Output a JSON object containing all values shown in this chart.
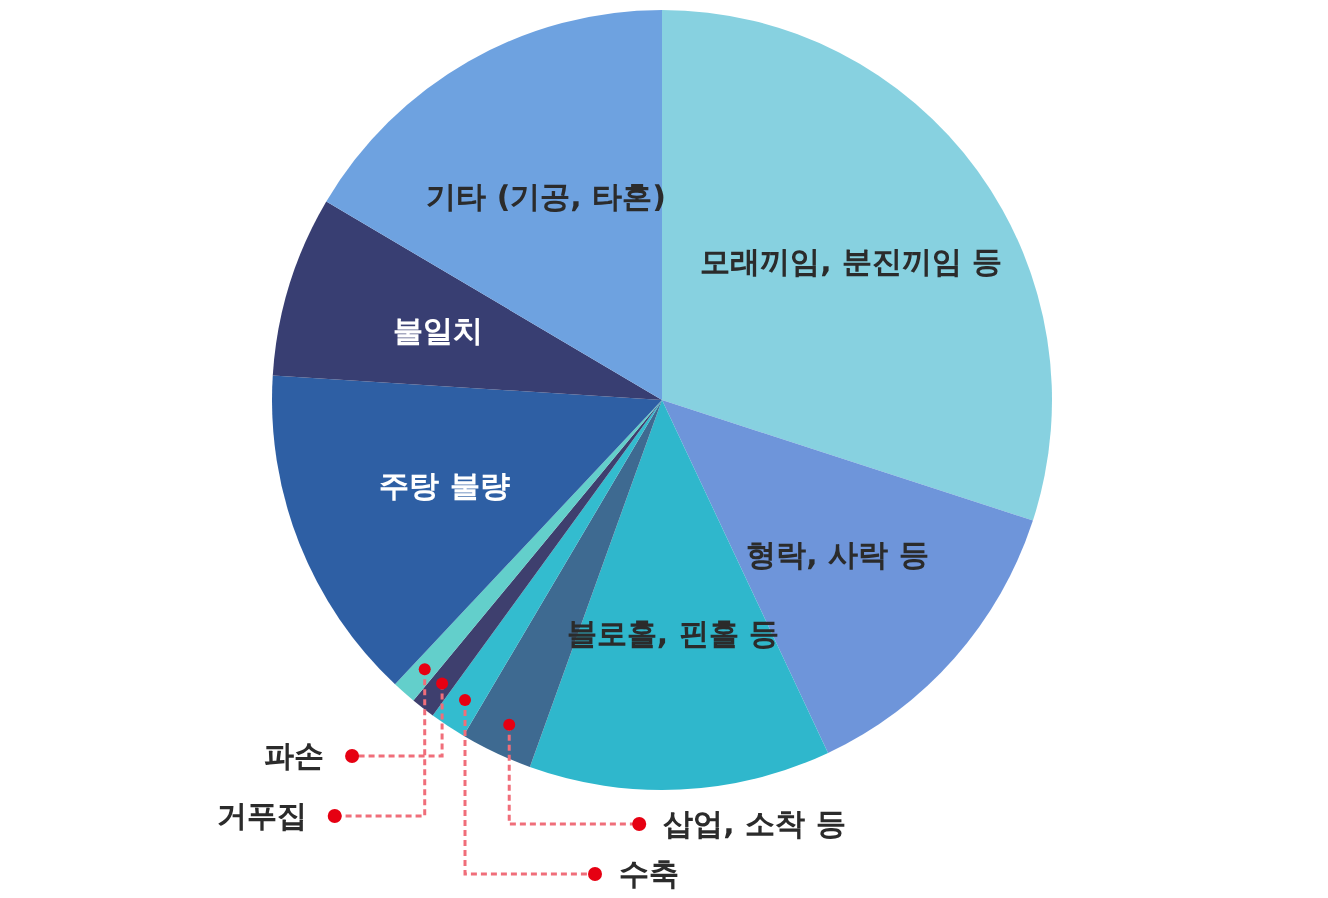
{
  "chart_data": {
    "type": "pie",
    "categories": [
      "모래끼임, 분진끼임 등",
      "형락, 사락 등",
      "블로홀, 핀홀 등",
      "삽업, 소착 등",
      "수축",
      "파손",
      "거푸집",
      "주탕 불량",
      "불일치",
      "기타 (기공, 타혼)"
    ],
    "values": [
      30,
      13,
      12.5,
      3,
      1.5,
      1,
      1,
      14,
      7.5,
      16.5
    ],
    "colors": [
      "#87d1e0",
      "#6e95da",
      "#2fb7cc",
      "#3e6a91",
      "#33bccf",
      "#3e3f6e",
      "#63cfcb",
      "#2e5fa4",
      "#383e72",
      "#6ea2e0"
    ]
  }
}
